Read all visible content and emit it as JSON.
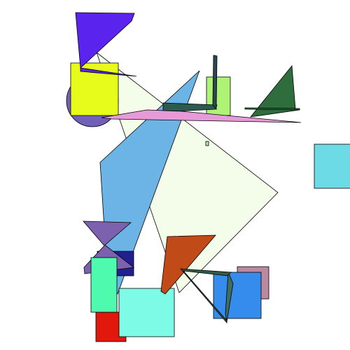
{
  "scene": {
    "background": "#ffffff",
    "stroke_color": "#000000",
    "shapes": [
      {
        "name": "lavender-diamond",
        "kind": "polygon",
        "color": "#f3fdea"
      },
      {
        "name": "purple-circle",
        "kind": "circle",
        "color": "#7060b8"
      },
      {
        "name": "yellow-square",
        "kind": "rect",
        "color": "#e8fc1c"
      },
      {
        "name": "violet-triangle",
        "kind": "polygon",
        "color": "#5a24ee"
      },
      {
        "name": "violet-thin-wedge",
        "kind": "polygon",
        "color": "#5a24ee"
      },
      {
        "name": "light-green-rect",
        "kind": "rect",
        "color": "#aef276"
      },
      {
        "name": "sky-blue-kite",
        "kind": "polygon",
        "color": "#6cb4e6"
      },
      {
        "name": "dark-teal-wedge",
        "kind": "polygon",
        "color": "#2b5b4e"
      },
      {
        "name": "dark-slate-needle",
        "kind": "polygon",
        "color": "#2b4750"
      },
      {
        "name": "pink-sliver",
        "kind": "polygon",
        "color": "#e69ad8"
      },
      {
        "name": "forest-green-triangle",
        "kind": "polygon",
        "color": "#2f6d3c"
      },
      {
        "name": "forest-green-line",
        "kind": "polygon",
        "color": "#2f6d3c"
      },
      {
        "name": "tiny-green-mark",
        "kind": "rect",
        "color": "#a8f2a0"
      },
      {
        "name": "cyan-square",
        "kind": "rect",
        "color": "#6cdbe6"
      },
      {
        "name": "navy-square",
        "kind": "rect",
        "color": "#221f8e"
      },
      {
        "name": "purple-bowtie",
        "kind": "polygon",
        "color": "#7c62ae"
      },
      {
        "name": "red-square",
        "kind": "rect",
        "color": "#e2180c"
      },
      {
        "name": "mint-rect",
        "kind": "rect",
        "color": "#4efaae"
      },
      {
        "name": "aquamarine-square",
        "kind": "rect",
        "color": "#7efbe6"
      },
      {
        "name": "rust-triangle",
        "kind": "polygon",
        "color": "#c04a18"
      },
      {
        "name": "mauve-square",
        "kind": "rect",
        "color": "#bc8a9e"
      },
      {
        "name": "blue-square",
        "kind": "rect",
        "color": "#368cec"
      },
      {
        "name": "teal-sliver",
        "kind": "polygon",
        "color": "#3e6e5e"
      },
      {
        "name": "dark-green-needle",
        "kind": "polygon",
        "color": "#345a4a"
      }
    ]
  }
}
